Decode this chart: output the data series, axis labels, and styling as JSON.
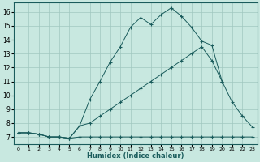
{
  "xlabel": "Humidex (Indice chaleur)",
  "background_color": "#c8e8e0",
  "grid_color": "#a0c8c0",
  "line_color": "#1a5c5c",
  "xlim": [
    -0.5,
    23.5
  ],
  "ylim": [
    6.5,
    16.7
  ],
  "xticks": [
    0,
    1,
    2,
    3,
    4,
    5,
    6,
    7,
    8,
    9,
    10,
    11,
    12,
    13,
    14,
    15,
    16,
    17,
    18,
    19,
    20,
    21,
    22,
    23
  ],
  "yticks": [
    7,
    8,
    9,
    10,
    11,
    12,
    13,
    14,
    15,
    16
  ],
  "line1_x": [
    0,
    1,
    2,
    3,
    4,
    5,
    6,
    7,
    8,
    9,
    10,
    11,
    12,
    13,
    14,
    15,
    16,
    17,
    18,
    19,
    20,
    21,
    22,
    23
  ],
  "line1_y": [
    7.3,
    7.3,
    7.2,
    7.0,
    7.0,
    6.9,
    7.0,
    7.0,
    7.0,
    7.0,
    7.0,
    7.0,
    7.0,
    7.0,
    7.0,
    7.0,
    7.0,
    7.0,
    7.0,
    7.0,
    7.0,
    7.0,
    7.0,
    7.0
  ],
  "line2_x": [
    0,
    1,
    2,
    3,
    4,
    5,
    6,
    7,
    8,
    9,
    10,
    11,
    12,
    13,
    14,
    15,
    16,
    17,
    18,
    19,
    20,
    21,
    22,
    23
  ],
  "line2_y": [
    7.3,
    7.3,
    7.2,
    7.0,
    7.0,
    6.9,
    7.8,
    8.0,
    8.5,
    9.0,
    9.5,
    10.0,
    10.5,
    11.0,
    11.5,
    12.0,
    12.5,
    13.0,
    13.5,
    12.5,
    11.0,
    9.5,
    8.5,
    7.7
  ],
  "line3_x": [
    0,
    1,
    2,
    3,
    4,
    5,
    6,
    7,
    8,
    9,
    10,
    11,
    12,
    13,
    14,
    15,
    16,
    17,
    18,
    19,
    20
  ],
  "line3_y": [
    7.3,
    7.3,
    7.2,
    7.0,
    7.0,
    6.9,
    7.8,
    9.7,
    11.0,
    12.4,
    13.5,
    14.9,
    15.6,
    15.1,
    15.8,
    16.3,
    15.7,
    14.9,
    13.9,
    13.6,
    11.0
  ]
}
